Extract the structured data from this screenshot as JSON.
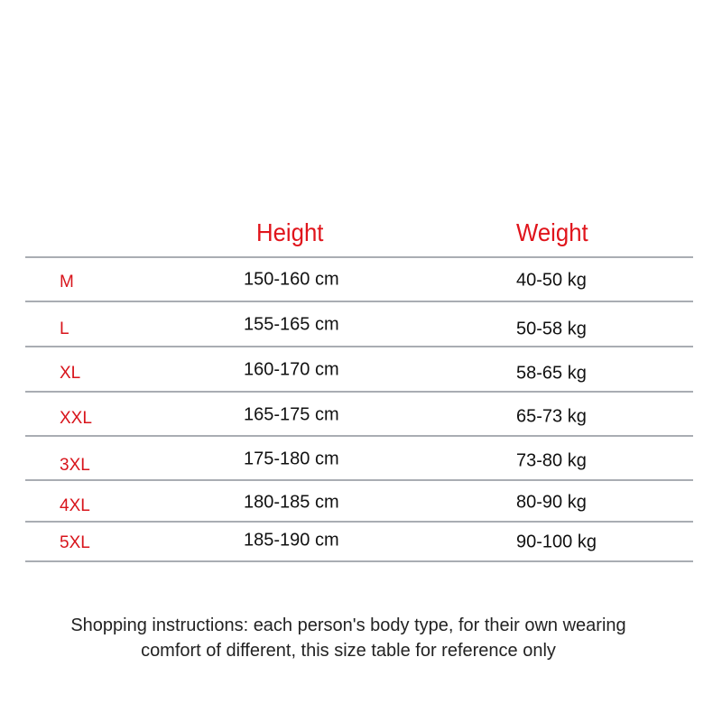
{
  "table": {
    "headers": {
      "size": "",
      "height": "Height",
      "weight": "Weight"
    },
    "rows": [
      {
        "size": "M",
        "height": "150-160 cm",
        "weight": "40-50 kg"
      },
      {
        "size": "L",
        "height": "155-165 cm",
        "weight": "50-58 kg"
      },
      {
        "size": "XL",
        "height": "160-170 cm",
        "weight": "58-65 kg"
      },
      {
        "size": "XXL",
        "height": "165-175 cm",
        "weight": "65-73 kg"
      },
      {
        "size": "3XL",
        "height": "175-180 cm",
        "weight": "73-80 kg"
      },
      {
        "size": "4XL",
        "height": "180-185 cm",
        "weight": "80-90 kg"
      },
      {
        "size": "5XL",
        "height": "185-190 cm",
        "weight": "90-100 kg"
      }
    ]
  },
  "note": {
    "line1": "Shopping instructions: each person's body type, for their own wearing",
    "line2": "comfort of different, this size table for reference only"
  },
  "colors": {
    "header": "#e0141b",
    "size_label": "#d8141b",
    "rule": "#a9adb3"
  }
}
